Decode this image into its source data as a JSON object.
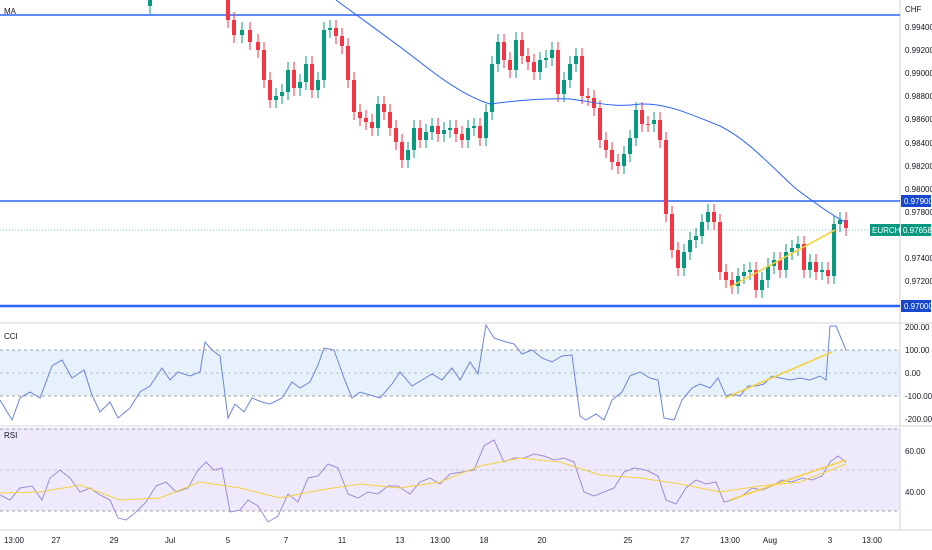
{
  "header": {
    "indicator_label": "MA",
    "currency_label": "CHF"
  },
  "colors": {
    "up": "#089981",
    "down": "#f23645",
    "hline": "#2962ff",
    "ma": "#2962ff",
    "trend": "#f5d142",
    "price_tag": "#089981",
    "level_tag": "#1848cc",
    "cci_band": "#e6f1fb",
    "rsi_band": "#efeafb",
    "osc": "#6c86d9",
    "rsi_ma": "#f5d142"
  },
  "chart_data": [
    {
      "type": "candlestick",
      "symbol": "EURCHF",
      "price_label": "0.97658",
      "y_axis_ticks": [
        "0.99400",
        "0.99200",
        "0.99000",
        "0.98800",
        "0.98600",
        "0.98400",
        "0.98200",
        "0.98000",
        "0.97800",
        "0.97400",
        "0.97200"
      ],
      "horizontal_levels": [
        "0.97900",
        "0.97000"
      ],
      "ylim": [
        0.9694,
        0.9956
      ],
      "x_tick_labels": [
        "13:00",
        "27",
        "29",
        "Jul",
        "5",
        "7",
        "11",
        "13",
        "13:00",
        "18",
        "20",
        "25",
        "27",
        "13:00",
        "Aug",
        "3",
        "13:00"
      ]
    },
    {
      "type": "line",
      "indicator": "CCI",
      "label": "CCI",
      "y_axis_ticks": [
        "200.00",
        "100.00",
        "0.00",
        "-100.00",
        "-200.00"
      ],
      "band": [
        -100,
        100
      ]
    },
    {
      "type": "line",
      "indicator": "RSI",
      "label": "RSI",
      "y_axis_ticks": [
        "60.00",
        "40.00"
      ],
      "band": [
        30,
        70
      ]
    }
  ]
}
